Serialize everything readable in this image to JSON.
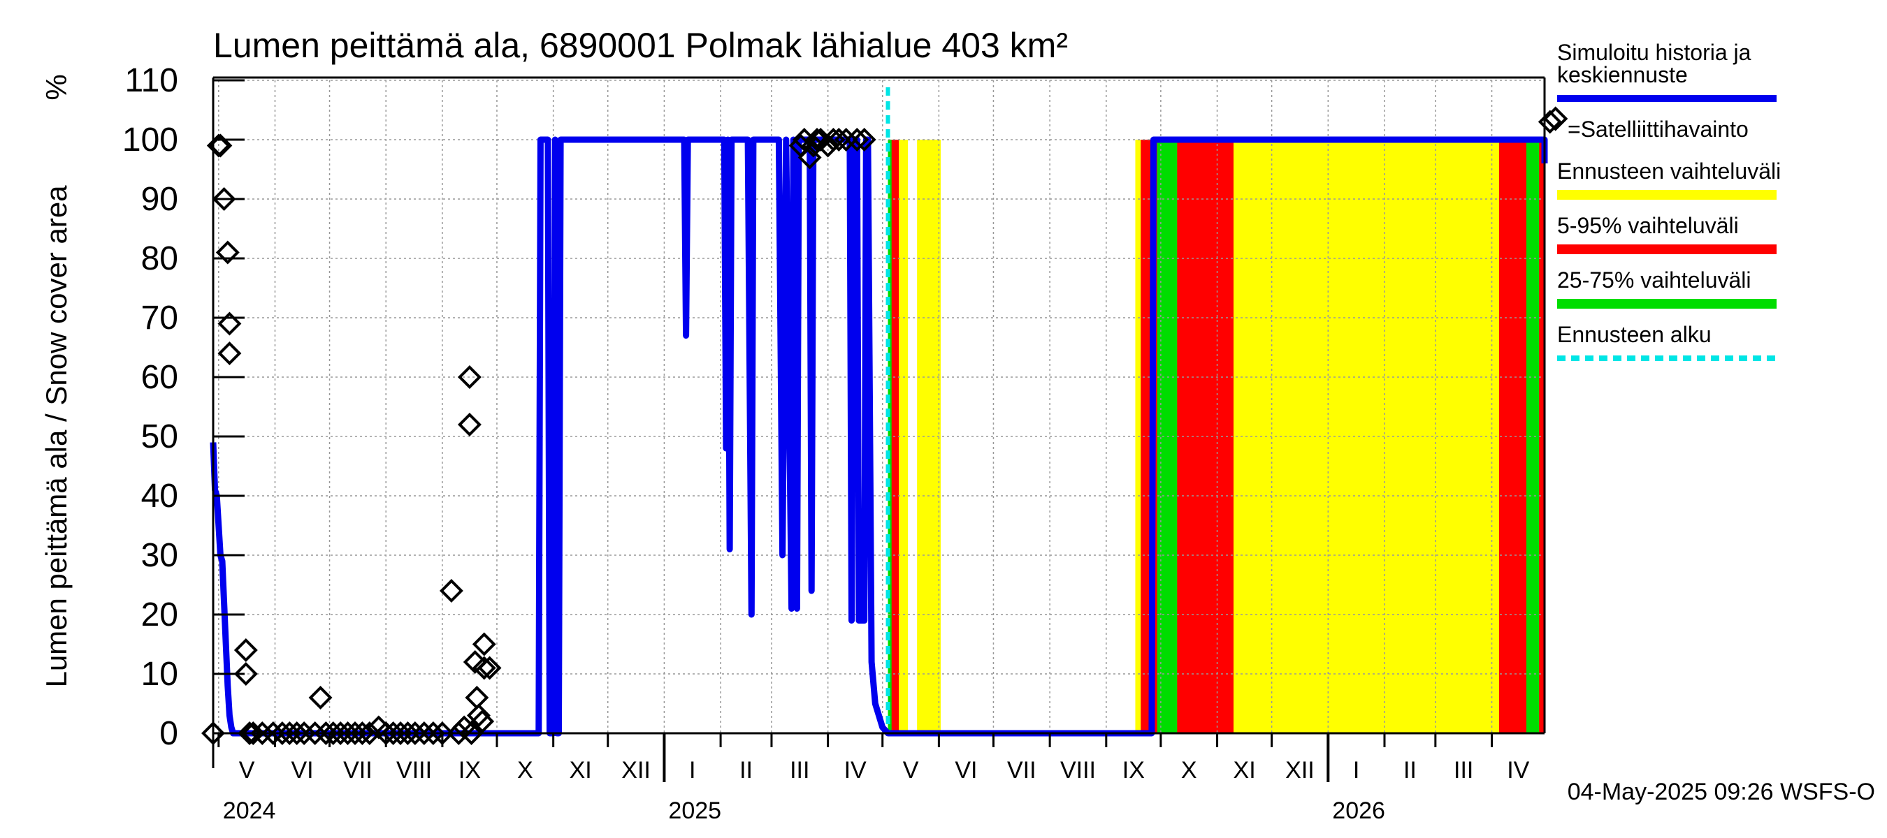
{
  "chart_data": {
    "type": "line",
    "title": "Lumen peittämä ala, 6890001 Polmak lähialue 403 km²",
    "ylabel": "Lumen peittämä ala / Snow cover area",
    "yunit": "%",
    "ylim": [
      0,
      110
    ],
    "yticks": [
      0,
      10,
      20,
      30,
      40,
      50,
      60,
      70,
      80,
      90,
      100,
      110
    ],
    "xlim": [
      "2024-04-28",
      "2026-04-30"
    ],
    "grid": true,
    "legend_position": "right",
    "months": [
      {
        "label": "V",
        "start": "2024-05-01"
      },
      {
        "label": "VI",
        "start": "2024-06-01"
      },
      {
        "label": "VII",
        "start": "2024-07-01"
      },
      {
        "label": "VIII",
        "start": "2024-08-01"
      },
      {
        "label": "IX",
        "start": "2024-09-01"
      },
      {
        "label": "X",
        "start": "2024-10-01"
      },
      {
        "label": "XI",
        "start": "2024-11-01"
      },
      {
        "label": "XII",
        "start": "2024-12-01"
      },
      {
        "label": "I",
        "start": "2025-01-01"
      },
      {
        "label": "II",
        "start": "2025-02-01"
      },
      {
        "label": "III",
        "start": "2025-03-01"
      },
      {
        "label": "IV",
        "start": "2025-04-01"
      },
      {
        "label": "V",
        "start": "2025-05-01"
      },
      {
        "label": "VI",
        "start": "2025-06-01"
      },
      {
        "label": "VII",
        "start": "2025-07-01"
      },
      {
        "label": "VIII",
        "start": "2025-08-01"
      },
      {
        "label": "IX",
        "start": "2025-09-01"
      },
      {
        "label": "X",
        "start": "2025-10-01"
      },
      {
        "label": "XI",
        "start": "2025-11-01"
      },
      {
        "label": "XII",
        "start": "2025-12-01"
      },
      {
        "label": "I",
        "start": "2026-01-01"
      },
      {
        "label": "II",
        "start": "2026-02-01"
      },
      {
        "label": "III",
        "start": "2026-03-01"
      },
      {
        "label": "IV",
        "start": "2026-04-01"
      }
    ],
    "years": [
      {
        "label": "2024",
        "at": "2024-05-01"
      },
      {
        "label": "2025",
        "at": "2025-01-01"
      },
      {
        "label": "2026",
        "at": "2026-01-01"
      }
    ],
    "forecast_start": "2025-05-04",
    "series": [
      {
        "name": "Simuloitu historia ja keskiennuste",
        "kind": "line",
        "color": "#0000ee",
        "points": [
          [
            "2024-04-28",
            49
          ],
          [
            "2024-04-29",
            41
          ],
          [
            "2024-04-30",
            40
          ],
          [
            "2024-05-01",
            35
          ],
          [
            "2024-05-02",
            30
          ],
          [
            "2024-05-03",
            29
          ],
          [
            "2024-05-04",
            22
          ],
          [
            "2024-05-05",
            15
          ],
          [
            "2024-05-06",
            8
          ],
          [
            "2024-05-07",
            3
          ],
          [
            "2024-05-08",
            1
          ],
          [
            "2024-05-09",
            0
          ],
          [
            "2024-10-24",
            0
          ],
          [
            "2024-10-25",
            100
          ],
          [
            "2024-10-29",
            100
          ],
          [
            "2024-10-30",
            0
          ],
          [
            "2024-11-01",
            0
          ],
          [
            "2024-11-02",
            100
          ],
          [
            "2024-11-03",
            0
          ],
          [
            "2024-11-04",
            0
          ],
          [
            "2024-11-05",
            100
          ],
          [
            "2025-01-12",
            100
          ],
          [
            "2025-01-13",
            67
          ],
          [
            "2025-01-14",
            100
          ],
          [
            "2025-02-03",
            100
          ],
          [
            "2025-02-04",
            48
          ],
          [
            "2025-02-05",
            100
          ],
          [
            "2025-02-06",
            31
          ],
          [
            "2025-02-07",
            100
          ],
          [
            "2025-02-16",
            100
          ],
          [
            "2025-02-18",
            20
          ],
          [
            "2025-02-19",
            100
          ],
          [
            "2025-03-05",
            100
          ],
          [
            "2025-03-07",
            30
          ],
          [
            "2025-03-09",
            100
          ],
          [
            "2025-03-12",
            21
          ],
          [
            "2025-03-13",
            100
          ],
          [
            "2025-03-15",
            21
          ],
          [
            "2025-03-16",
            100
          ],
          [
            "2025-03-22",
            100
          ],
          [
            "2025-03-23",
            24
          ],
          [
            "2025-03-24",
            100
          ],
          [
            "2025-04-13",
            100
          ],
          [
            "2025-04-14",
            19
          ],
          [
            "2025-04-15",
            100
          ],
          [
            "2025-04-17",
            100
          ],
          [
            "2025-04-18",
            19
          ],
          [
            "2025-04-21",
            19
          ],
          [
            "2025-04-22",
            100
          ],
          [
            "2025-04-23",
            100
          ],
          [
            "2025-04-25",
            12
          ],
          [
            "2025-04-27",
            5
          ],
          [
            "2025-05-01",
            1
          ],
          [
            "2025-05-04",
            0
          ],
          [
            "2025-09-26",
            0
          ],
          [
            "2025-09-27",
            100
          ],
          [
            "2026-04-30",
            100
          ],
          [
            "2026-04-30",
            96
          ]
        ]
      },
      {
        "name": "=Satelliittihavainto",
        "kind": "scatter",
        "color": "#000000",
        "points": [
          [
            "2024-04-28",
            0
          ],
          [
            "2024-05-01",
            99
          ],
          [
            "2024-05-02",
            99
          ],
          [
            "2024-05-04",
            90
          ],
          [
            "2024-05-06",
            81
          ],
          [
            "2024-05-07",
            69
          ],
          [
            "2024-05-07",
            64
          ],
          [
            "2024-05-16",
            14
          ],
          [
            "2024-05-16",
            10
          ],
          [
            "2024-05-18",
            0
          ],
          [
            "2024-05-20",
            0
          ],
          [
            "2024-05-25",
            0
          ],
          [
            "2024-05-31",
            0
          ],
          [
            "2024-06-05",
            0
          ],
          [
            "2024-06-09",
            0
          ],
          [
            "2024-06-13",
            0
          ],
          [
            "2024-06-17",
            0
          ],
          [
            "2024-06-23",
            0
          ],
          [
            "2024-06-26",
            6
          ],
          [
            "2024-06-29",
            0
          ],
          [
            "2024-07-03",
            0
          ],
          [
            "2024-07-07",
            0
          ],
          [
            "2024-07-11",
            0
          ],
          [
            "2024-07-15",
            0
          ],
          [
            "2024-07-19",
            0
          ],
          [
            "2024-07-23",
            0
          ],
          [
            "2024-07-28",
            1
          ],
          [
            "2024-08-01",
            0
          ],
          [
            "2024-08-05",
            0
          ],
          [
            "2024-08-09",
            0
          ],
          [
            "2024-08-13",
            0
          ],
          [
            "2024-08-17",
            0
          ],
          [
            "2024-08-22",
            0
          ],
          [
            "2024-08-27",
            0
          ],
          [
            "2024-09-01",
            0
          ],
          [
            "2024-09-06",
            24
          ],
          [
            "2024-09-10",
            0
          ],
          [
            "2024-09-13",
            1
          ],
          [
            "2024-09-16",
            60
          ],
          [
            "2024-09-16",
            52
          ],
          [
            "2024-09-17",
            0
          ],
          [
            "2024-09-19",
            12
          ],
          [
            "2024-09-20",
            6
          ],
          [
            "2024-09-21",
            3
          ],
          [
            "2024-09-23",
            2
          ],
          [
            "2024-09-24",
            15
          ],
          [
            "2024-09-24",
            11
          ],
          [
            "2024-09-27",
            11
          ],
          [
            "2025-03-17",
            99
          ],
          [
            "2025-03-19",
            100
          ],
          [
            "2025-03-22",
            97
          ],
          [
            "2025-03-24",
            99
          ],
          [
            "2025-03-26",
            100
          ],
          [
            "2025-03-28",
            100
          ],
          [
            "2025-04-01",
            99
          ],
          [
            "2025-04-04",
            100
          ],
          [
            "2025-04-07",
            100
          ],
          [
            "2025-04-11",
            100
          ],
          [
            "2025-04-17",
            100
          ],
          [
            "2025-04-21",
            100
          ],
          [
            "2026-05-03",
            103
          ]
        ]
      },
      {
        "name": "Ennusteen vaihteluväli",
        "kind": "band",
        "color": "#ffff00",
        "segments": [
          [
            "2025-05-04",
            "2025-05-15"
          ],
          [
            "2025-05-20",
            "2025-06-02"
          ],
          [
            "2025-09-17",
            "2026-04-30"
          ]
        ]
      },
      {
        "name": "5-95% vaihteluväli",
        "kind": "band",
        "color": "#ff0000",
        "segments": [
          [
            "2025-05-04",
            "2025-05-10"
          ],
          [
            "2025-09-20",
            "2025-11-10"
          ],
          [
            "2026-04-05",
            "2026-04-30"
          ]
        ]
      },
      {
        "name": "25-75% vaihteluväli",
        "kind": "band",
        "color": "#00dd00",
        "segments": [
          [
            "2025-05-04",
            "2025-05-06"
          ],
          [
            "2025-09-29",
            "2025-10-10"
          ],
          [
            "2026-04-20",
            "2026-04-27"
          ]
        ]
      },
      {
        "name": "Ennusteen alku",
        "kind": "vline",
        "color": "#00e5e5"
      }
    ]
  },
  "legend": {
    "history_line1": "Simuloitu historia ja",
    "history_line2": "keskiennuste",
    "satellite": "=Satelliittihavainto",
    "range": "Ennusteen vaihteluväli",
    "p5_95": "5-95% vaihteluväli",
    "p25_75": "25-75% vaihteluväli",
    "forecast_start": "Ennusteen alku"
  },
  "footer": {
    "timestamp": "04-May-2025 09:26 WSFS-O"
  }
}
